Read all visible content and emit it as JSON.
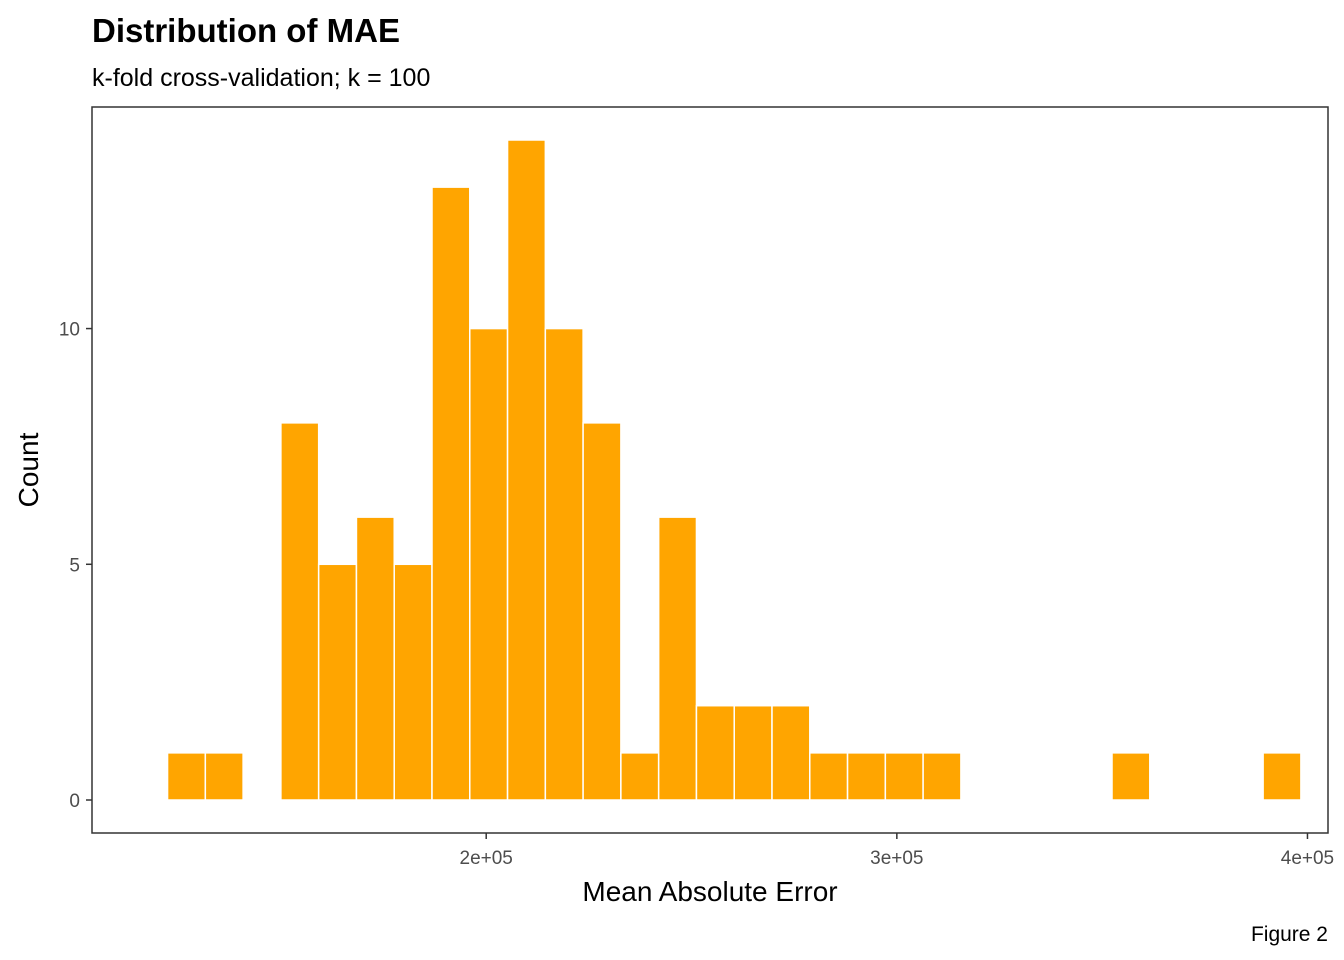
{
  "chart_data": {
    "type": "bar",
    "title": "Distribution of MAE",
    "subtitle": "k-fold cross-validation; k = 100",
    "caption": "Figure 2",
    "xlabel": "Mean Absolute Error",
    "ylabel": "Count",
    "bin_width": 9200,
    "bins": [
      {
        "x": 127000,
        "count": 1
      },
      {
        "x": 136200,
        "count": 1
      },
      {
        "x": 145400,
        "count": 0
      },
      {
        "x": 154600,
        "count": 8
      },
      {
        "x": 163800,
        "count": 5
      },
      {
        "x": 173000,
        "count": 6
      },
      {
        "x": 182200,
        "count": 5
      },
      {
        "x": 191400,
        "count": 13
      },
      {
        "x": 200600,
        "count": 10
      },
      {
        "x": 209800,
        "count": 14
      },
      {
        "x": 219000,
        "count": 10
      },
      {
        "x": 228200,
        "count": 8
      },
      {
        "x": 237400,
        "count": 1
      },
      {
        "x": 246600,
        "count": 6
      },
      {
        "x": 255800,
        "count": 2
      },
      {
        "x": 265000,
        "count": 2
      },
      {
        "x": 274200,
        "count": 2
      },
      {
        "x": 283400,
        "count": 1
      },
      {
        "x": 292600,
        "count": 1
      },
      {
        "x": 301800,
        "count": 1
      },
      {
        "x": 311000,
        "count": 1
      },
      {
        "x": 320200,
        "count": 0
      },
      {
        "x": 329400,
        "count": 0
      },
      {
        "x": 338600,
        "count": 0
      },
      {
        "x": 347800,
        "count": 0
      },
      {
        "x": 357000,
        "count": 1
      },
      {
        "x": 366200,
        "count": 0
      },
      {
        "x": 375400,
        "count": 0
      },
      {
        "x": 384600,
        "count": 0
      },
      {
        "x": 393800,
        "count": 1
      }
    ],
    "x_ticks": [
      {
        "value": 200000,
        "label": "2e+05"
      },
      {
        "value": 300000,
        "label": "3e+05"
      },
      {
        "value": 400000,
        "label": "4e+05"
      }
    ],
    "y_ticks": [
      {
        "value": 0,
        "label": "0"
      },
      {
        "value": 5,
        "label": "5"
      },
      {
        "value": 10,
        "label": "10"
      }
    ],
    "xlim": [
      104000,
      405000
    ],
    "ylim": [
      -0.7,
      14.7
    ],
    "grid": false,
    "legend": "none",
    "colors": {
      "bar_fill": "#FFA500",
      "bar_outline": "#FFFFFF",
      "panel_border": "#333333",
      "tick_color": "#333333"
    }
  }
}
